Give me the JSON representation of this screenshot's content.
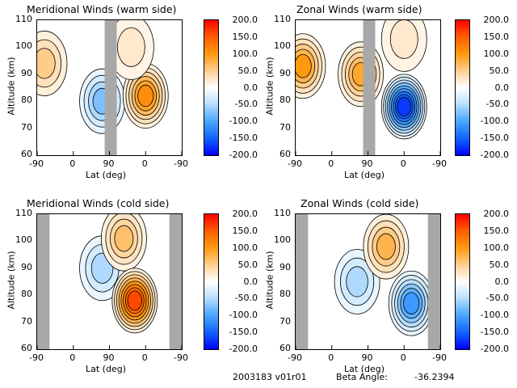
{
  "chart_data": [
    {
      "type": "heatmap",
      "title": "Meridional Winds (warm side)",
      "xlabel": "Lat (deg)",
      "ylabel": "Altitude (km)",
      "xticks": [
        "-90",
        "0",
        "90",
        "0",
        "-90"
      ],
      "yticks": [
        "60",
        "70",
        "80",
        "90",
        "100",
        "110"
      ],
      "ylim": [
        60,
        110
      ],
      "colorbar": {
        "ticks": [
          "200.0",
          "150.0",
          "100.0",
          "50.0",
          "0.0",
          "-50.0",
          "-100.0",
          "-150.0",
          "-200.0"
        ],
        "range": [
          -200,
          200
        ]
      },
      "features": [
        {
          "kind": "positive",
          "lat_index": 0.2,
          "alt": 94,
          "peak": 60
        },
        {
          "kind": "negative",
          "lat_index": 1.8,
          "alt": 80,
          "peak": -80
        },
        {
          "kind": "masked",
          "from": 1.87,
          "to": 2.2
        },
        {
          "kind": "positive",
          "lat_index": 3.0,
          "alt": 82,
          "peak": 110
        },
        {
          "kind": "positive",
          "lat_index": 2.6,
          "alt": 100,
          "peak": 30
        }
      ]
    },
    {
      "type": "heatmap",
      "title": "Zonal Winds (warm side)",
      "xlabel": "Lat (deg)",
      "ylabel": "Altitude (km)",
      "xticks": [
        "-90",
        "0",
        "90",
        "0",
        "-90"
      ],
      "yticks": [
        "60",
        "70",
        "80",
        "90",
        "100",
        "110"
      ],
      "ylim": [
        60,
        110
      ],
      "colorbar": {
        "ticks": [
          "200.0",
          "150.0",
          "100.0",
          "50.0",
          "0.0",
          "-50.0",
          "-100.0",
          "-150.0",
          "-200.0"
        ],
        "range": [
          -200,
          200
        ]
      },
      "features": [
        {
          "kind": "positive",
          "lat_index": 0.2,
          "alt": 93,
          "peak": 100
        },
        {
          "kind": "positive",
          "lat_index": 1.8,
          "alt": 90,
          "peak": 90
        },
        {
          "kind": "masked",
          "from": 1.87,
          "to": 2.2
        },
        {
          "kind": "negative",
          "lat_index": 3.0,
          "alt": 78,
          "peak": -170
        },
        {
          "kind": "positive",
          "lat_index": 3.0,
          "alt": 103,
          "peak": 30
        }
      ]
    },
    {
      "type": "heatmap",
      "title": "Meridional Winds (cold side)",
      "xlabel": "Lat (deg)",
      "ylabel": "Altitude (km)",
      "xticks": [
        "-90",
        "0",
        "90",
        "0",
        "-90"
      ],
      "yticks": [
        "60",
        "70",
        "80",
        "90",
        "100",
        "110"
      ],
      "ylim": [
        60,
        110
      ],
      "colorbar": {
        "ticks": [
          "200.0",
          "150.0",
          "100.0",
          "50.0",
          "0.0",
          "-50.0",
          "-100.0",
          "-150.0",
          "-200.0"
        ],
        "range": [
          -200,
          200
        ]
      },
      "features": [
        {
          "kind": "masked",
          "from": 0.0,
          "to": 0.34
        },
        {
          "kind": "negative",
          "lat_index": 1.8,
          "alt": 90,
          "peak": -60
        },
        {
          "kind": "positive",
          "lat_index": 2.4,
          "alt": 101,
          "peak": 70
        },
        {
          "kind": "positive",
          "lat_index": 2.7,
          "alt": 78,
          "peak": 160
        },
        {
          "kind": "masked",
          "from": 3.66,
          "to": 4.0
        }
      ]
    },
    {
      "type": "heatmap",
      "title": "Zonal Winds (cold side)",
      "xlabel": "Lat (deg)",
      "ylabel": "Altitude (km)",
      "xticks": [
        "-90",
        "0",
        "90",
        "0",
        "-90"
      ],
      "yticks": [
        "60",
        "70",
        "80",
        "90",
        "100",
        "110"
      ],
      "ylim": [
        60,
        110
      ],
      "colorbar": {
        "ticks": [
          "200.0",
          "150.0",
          "100.0",
          "50.0",
          "0.0",
          "-50.0",
          "-100.0",
          "-150.0",
          "-200.0"
        ],
        "range": [
          -200,
          200
        ]
      },
      "features": [
        {
          "kind": "masked",
          "from": 0.0,
          "to": 0.34
        },
        {
          "kind": "negative",
          "lat_index": 1.7,
          "alt": 85,
          "peak": -60
        },
        {
          "kind": "positive",
          "lat_index": 2.5,
          "alt": 98,
          "peak": 80
        },
        {
          "kind": "negative",
          "lat_index": 3.2,
          "alt": 77,
          "peak": -110
        },
        {
          "kind": "masked",
          "from": 3.66,
          "to": 4.0
        }
      ]
    }
  ],
  "footer": {
    "date_version": "2003183 v01r01",
    "beta_label": "Beta Angle:",
    "beta_value": "-36.2394"
  }
}
